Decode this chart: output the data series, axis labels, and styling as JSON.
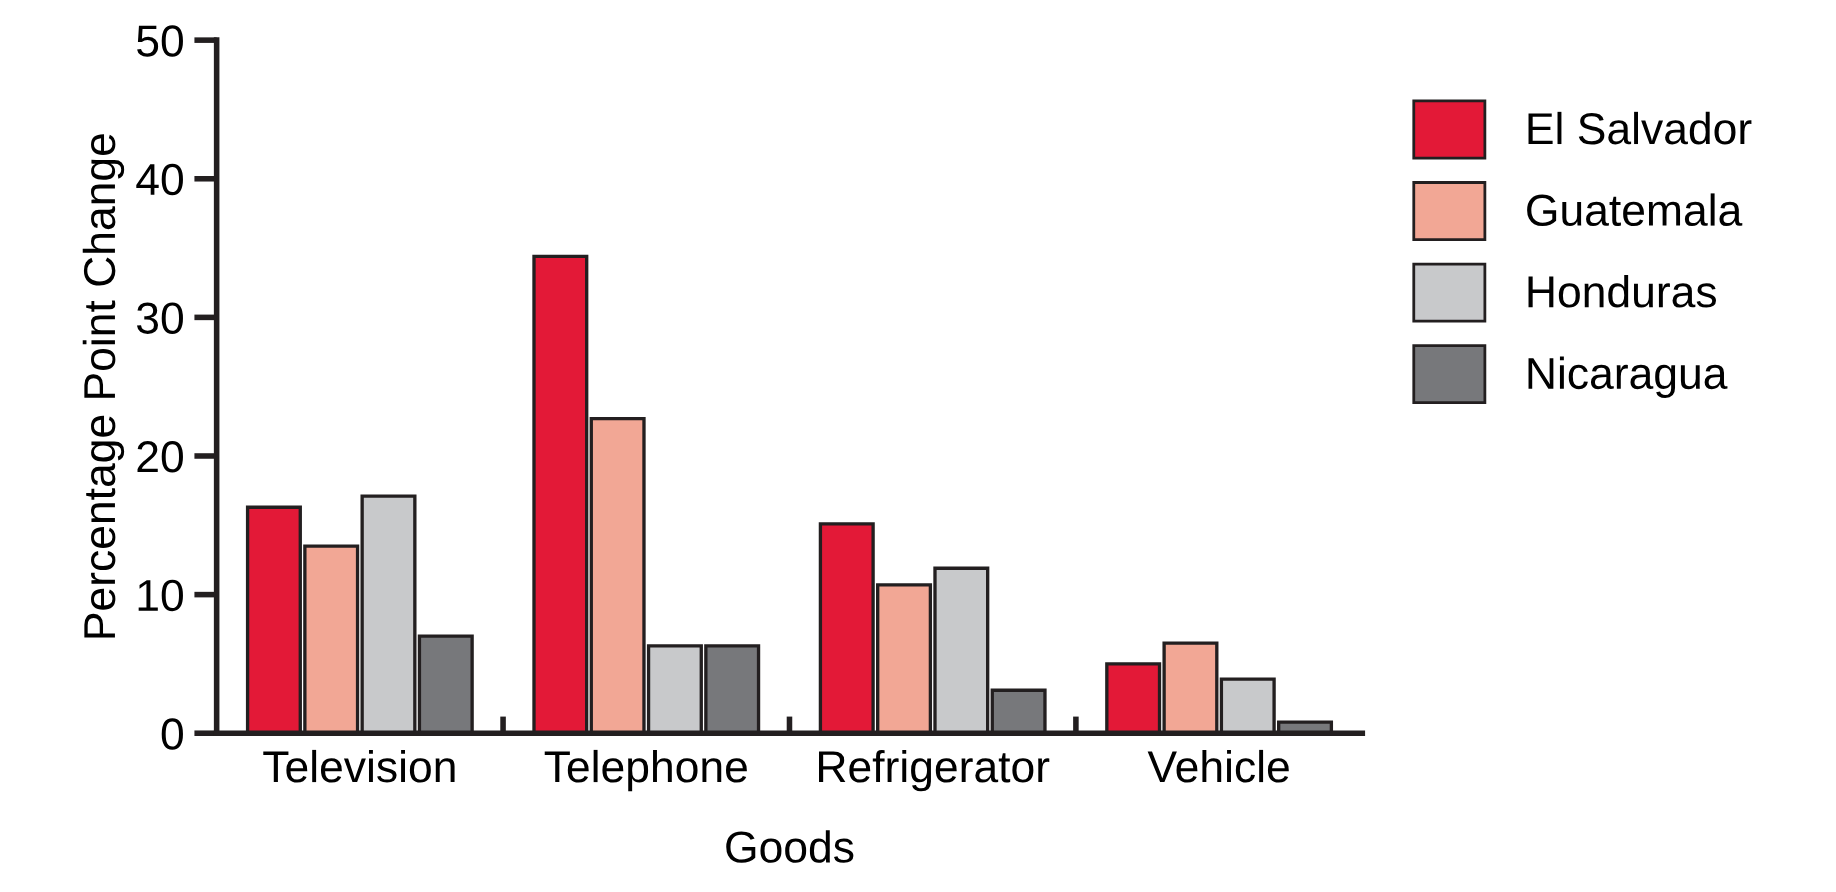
{
  "chart_data": {
    "type": "bar",
    "xlabel": "Goods",
    "ylabel": "Percentage Point Change",
    "categories": [
      "Television",
      "Telephone",
      "Refrigerator",
      "Vehicle"
    ],
    "series": [
      {
        "name": "El Salvador",
        "color": "#e31937",
        "values": [
          16.3,
          34.4,
          15.1,
          5.0
        ]
      },
      {
        "name": "Guatemala",
        "color": "#f2a795",
        "values": [
          13.5,
          22.7,
          10.7,
          6.5
        ]
      },
      {
        "name": "Honduras",
        "color": "#c8c9cb",
        "values": [
          17.1,
          6.3,
          11.9,
          3.9
        ]
      },
      {
        "name": "Nicaragua",
        "color": "#77787b",
        "values": [
          7.0,
          6.3,
          3.1,
          0.8
        ]
      }
    ],
    "ylim": [
      0,
      50
    ],
    "yticks": [
      0,
      10,
      20,
      30,
      40,
      50
    ],
    "grid": false,
    "legend": "right"
  }
}
